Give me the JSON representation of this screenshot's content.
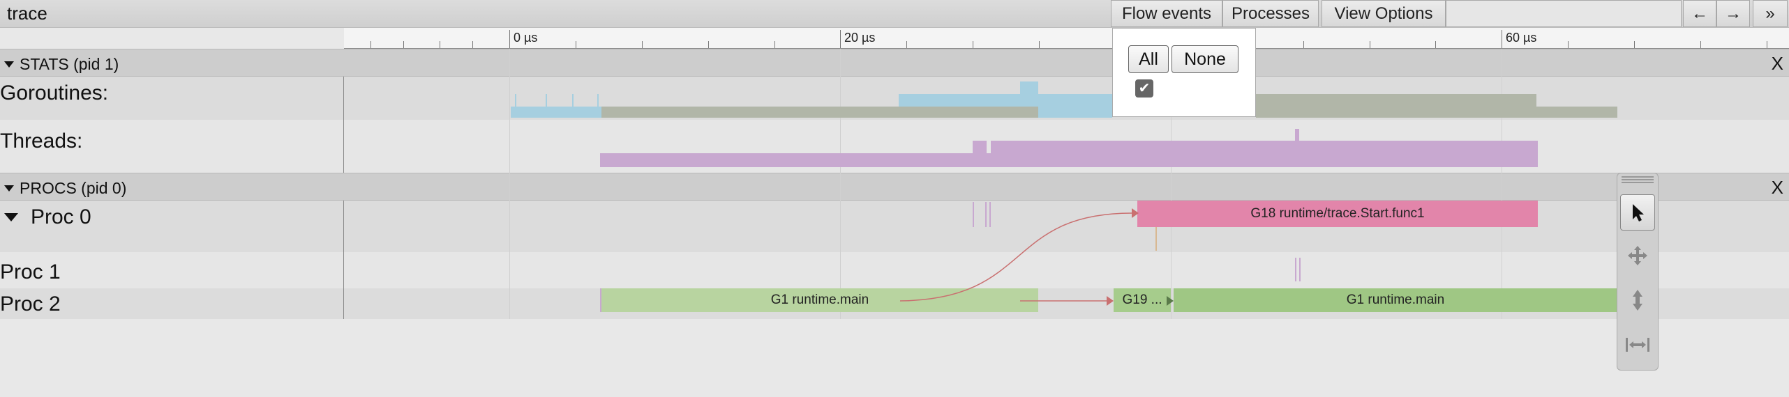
{
  "app": {
    "title": "trace"
  },
  "toolbar": {
    "flow_events": "Flow events",
    "processes": "Processes",
    "view_options": "View Options",
    "prev_arrow": "←",
    "next_arrow": "→",
    "more": "»"
  },
  "ruler": {
    "labels": [
      "0 µs",
      "20 µs",
      "60 µs"
    ]
  },
  "sections": {
    "stats": {
      "label": "STATS (pid 1)",
      "close": "X"
    },
    "procs": {
      "label": "PROCS (pid 0)",
      "close": "X"
    }
  },
  "rows": {
    "goroutines": "Goroutines:",
    "threads": "Threads:",
    "proc0": "Proc 0",
    "proc1": "Proc 1",
    "proc2": "Proc 2"
  },
  "slices": {
    "g18": "G18 runtime/trace.Start.func1",
    "g1_left": "G1 runtime.main",
    "g19": "G19 ...",
    "g1_right": "G1 runtime.main"
  },
  "flow_popup": {
    "all": "All",
    "none": "None",
    "checkbox": "✔"
  },
  "mouse_modes": [
    "select-icon",
    "pan-icon",
    "zoom-icon",
    "timing-icon"
  ],
  "colors": {
    "goroutine_running": "#a6cfe0",
    "goroutine_runnable": "#b1b6a8",
    "threads": "#c8a8d0",
    "g18": "#e285aa",
    "g1_main": "#b8d4a0",
    "g1_main_bright": "#9fc784",
    "g19": "#a6cc8c",
    "flow_arrow": "#c97070"
  }
}
